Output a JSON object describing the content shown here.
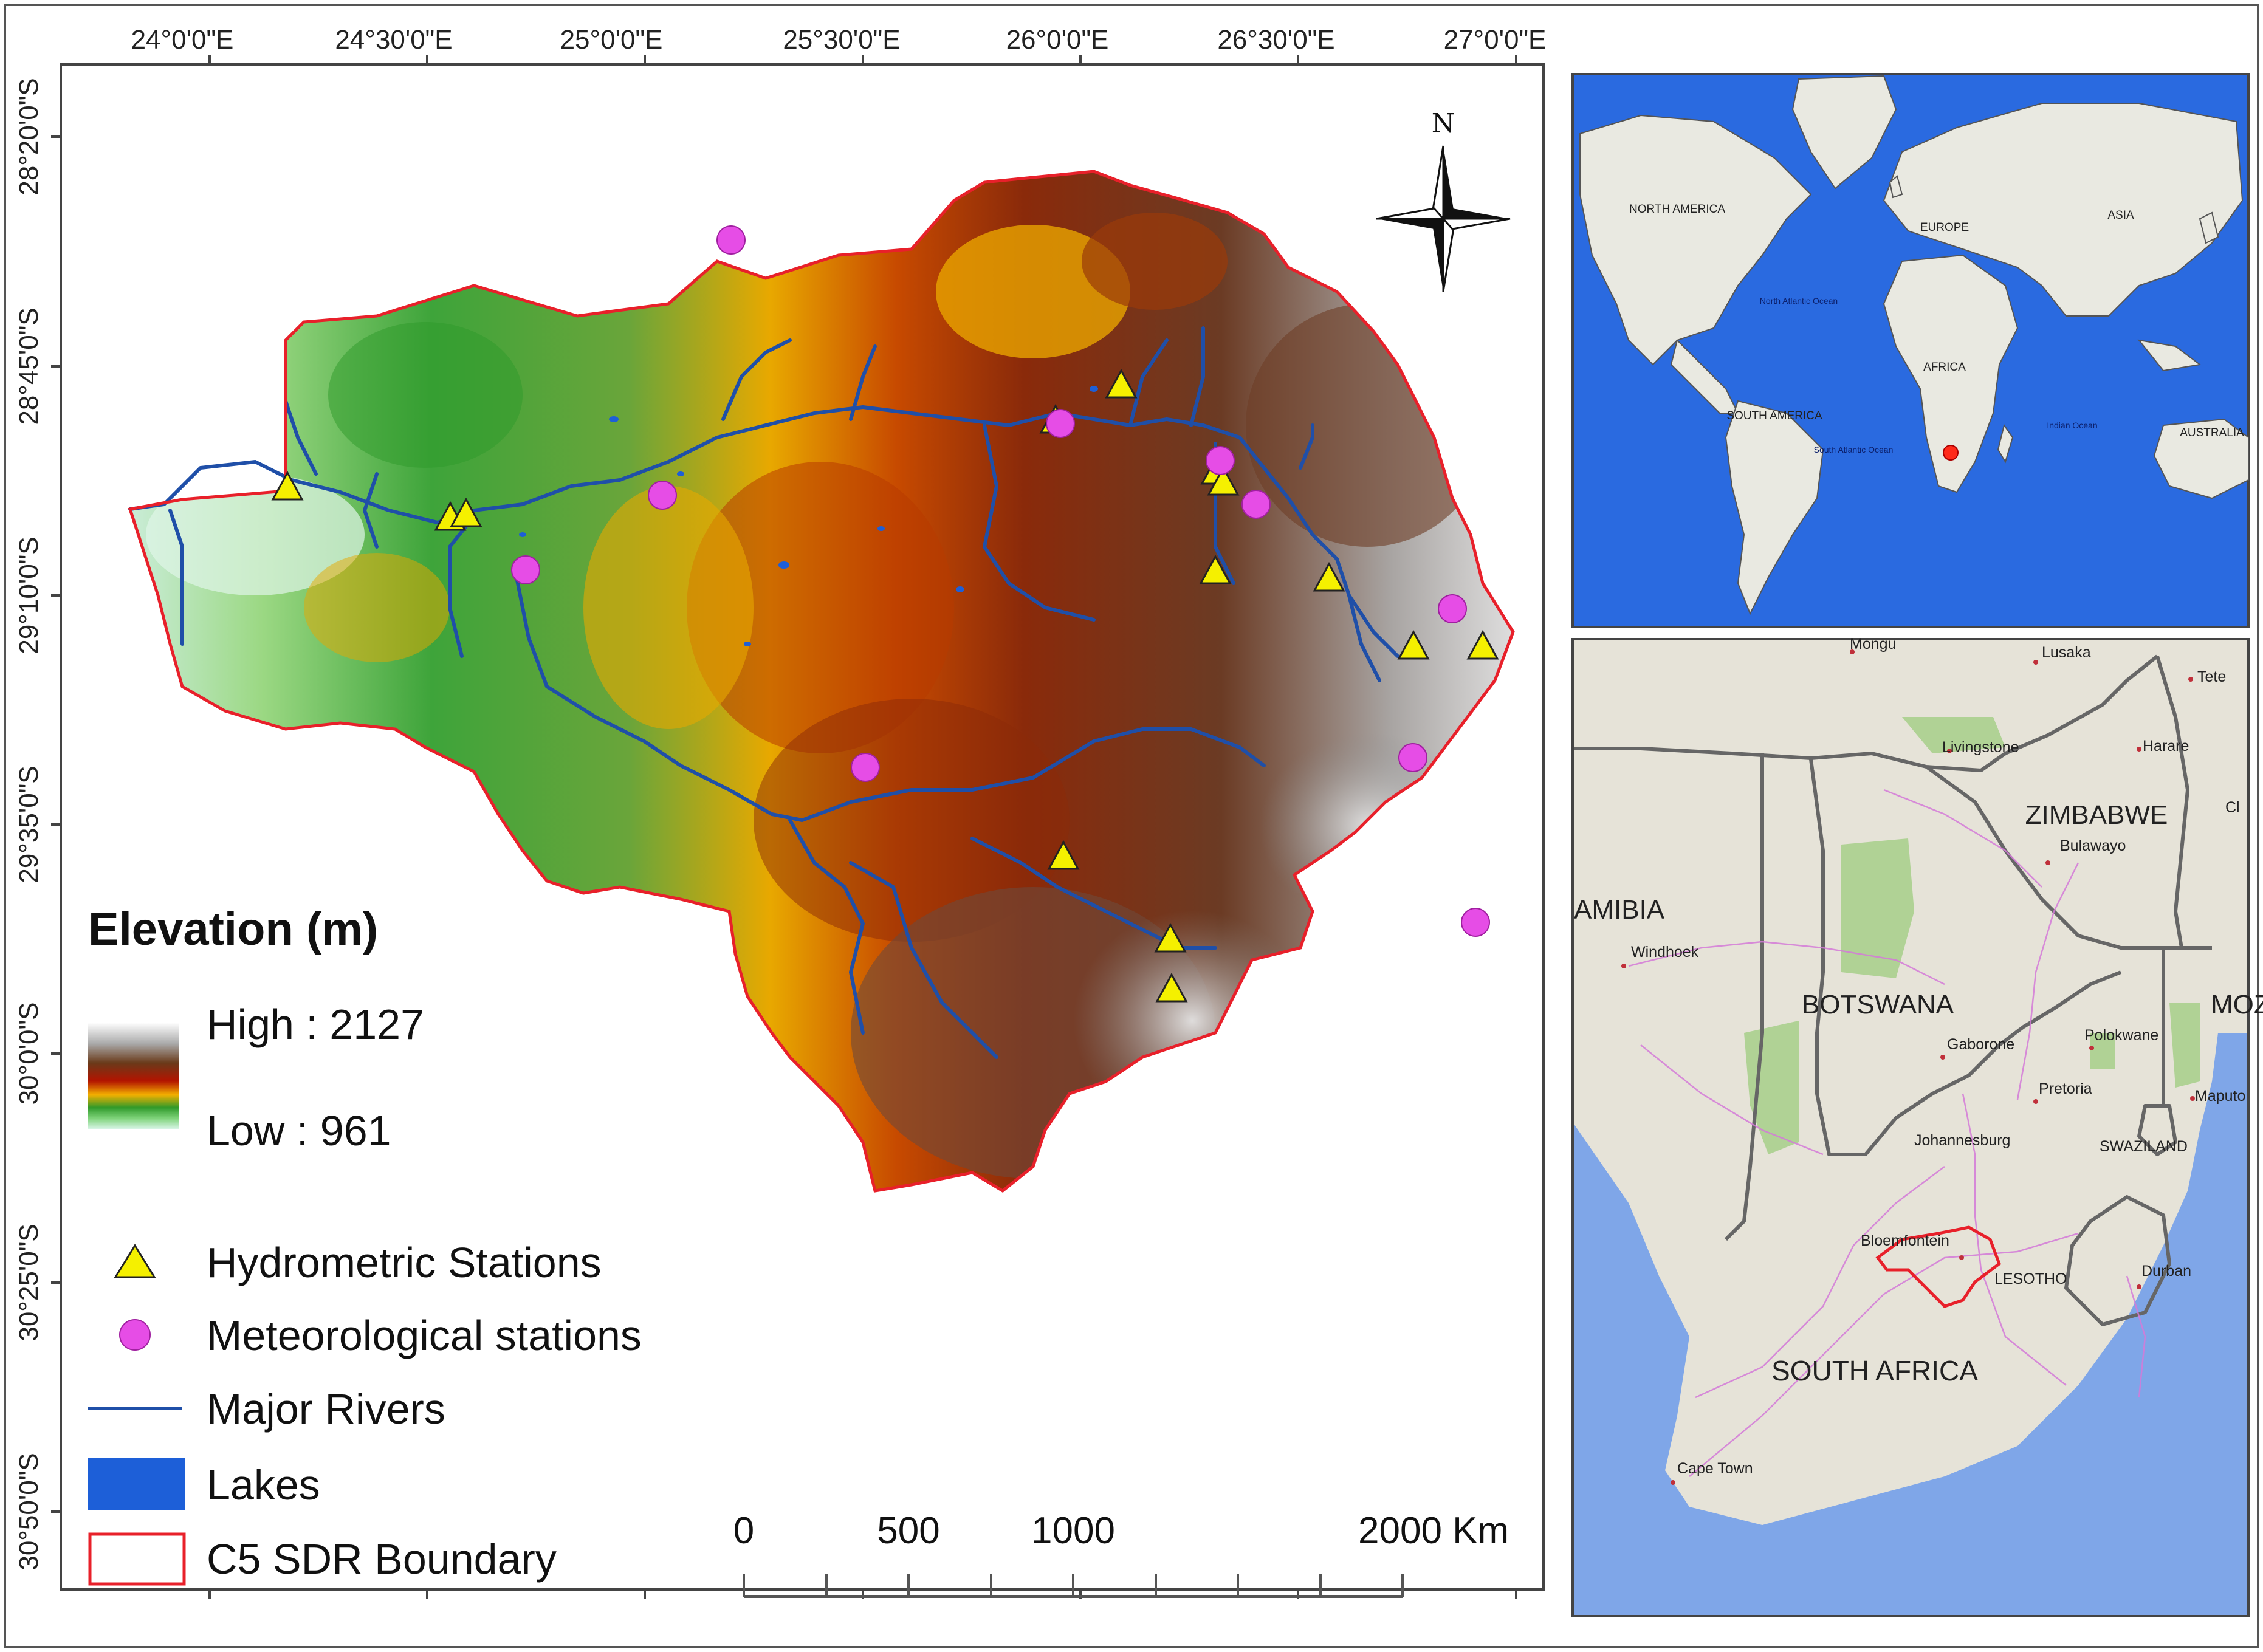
{
  "axes": {
    "top_ticks": [
      "24°0'0\"E",
      "24°30'0\"E",
      "25°0'0\"E",
      "25°30'0\"E",
      "26°0'0\"E",
      "26°30'0\"E",
      "27°0'0\"E"
    ],
    "left_ticks": [
      "28°20'0\"S",
      "28°45'0\"S",
      "29°10'0\"S",
      "29°35'0\"S",
      "30°0'0\"S",
      "30°25'0\"S",
      "30°50'0\"S"
    ]
  },
  "north_label": "N",
  "legend": {
    "title": "Elevation (m)",
    "high_label": "High : 2127",
    "low_label": "Low : 961",
    "hydrometric": "Hydrometric Stations",
    "meteorological": "Meteorological stations",
    "rivers": "Major Rivers",
    "lakes": "Lakes",
    "boundary": "C5 SDR Boundary"
  },
  "elevation_range": {
    "high": 2127,
    "low": 961
  },
  "scalebar": {
    "labels": [
      "0",
      "500",
      "1000",
      "2000 Km"
    ]
  },
  "world_inset": {
    "labels": [
      "NORTH AMERICA",
      "EUROPE",
      "ASIA",
      "AFRICA",
      "SOUTH AMERICA",
      "AUSTRALIA"
    ],
    "ocean_labels": [
      "North Atlantic Ocean",
      "South Atlantic Ocean",
      "Indian Ocean"
    ]
  },
  "region_inset": {
    "countries": [
      "ZIMBABWE",
      "AMIBIA",
      "BOTSWANA",
      "MOZ",
      "SOUTH AFRICA",
      "SWAZILAND",
      "LESOTHO"
    ],
    "cities": [
      "Mongu",
      "Lusaka",
      "Tete",
      "Livingstone",
      "Harare",
      "Bulawayo",
      "Windhoek",
      "Gaborone",
      "Polokwane",
      "Pretoria",
      "Johannesburg",
      "Maputo",
      "Bloemfontein",
      "Durban",
      "Cape Town",
      "Cl"
    ]
  },
  "colors": {
    "boundary": "#e8202a",
    "rivers": "#1f4fa8",
    "hydrometric": "#f5f000",
    "meteorological": "#e64de6",
    "lakes": "#1d5fd8",
    "ocean": "#2a6ae0",
    "region_sea": "#7fa6e8"
  }
}
